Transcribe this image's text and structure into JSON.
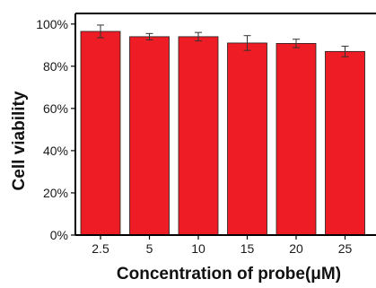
{
  "chart_data": {
    "type": "bar",
    "title": "",
    "xlabel": "Concentration of probe(μM)",
    "ylabel": "Cell viability",
    "categories": [
      "2.5",
      "5",
      "10",
      "15",
      "20",
      "25"
    ],
    "values": [
      96.5,
      94.0,
      94.0,
      91.0,
      90.8,
      87.0
    ],
    "errors": [
      3.0,
      1.5,
      2.0,
      3.5,
      2.0,
      2.5
    ],
    "ylim": [
      0,
      105
    ],
    "yticks": [
      0,
      20,
      40,
      60,
      80,
      100
    ],
    "ytick_labels": [
      "0%",
      "20%",
      "40%",
      "60%",
      "80%",
      "100%"
    ],
    "bar_color": "#ee1c24",
    "grid": false,
    "legend": "none"
  }
}
